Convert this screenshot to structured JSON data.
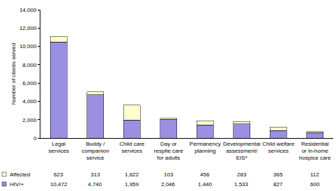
{
  "chart_data": {
    "type": "bar",
    "stacked": true,
    "y_label": "Number of clients served",
    "categories": [
      "Legal services",
      "Buddy / companion service",
      "Child care services",
      "Day or respite care for adults",
      "Permanency planning",
      "Developmental assessment/ EIS*",
      "Child welfare services",
      "Residential or in-home hospice care"
    ],
    "series": [
      {
        "name": "HIV/+",
        "color": "#9a8fe0",
        "values": [
          10472,
          4740,
          1959,
          2046,
          1440,
          1533,
          827,
          600
        ],
        "value_labels": [
          "10,472",
          "4,740",
          "1,959",
          "2,046",
          "1,440",
          "1,533",
          "827",
          "600"
        ]
      },
      {
        "name": "Affected",
        "color": "#ffffcc",
        "values": [
          623,
          313,
          1622,
          103,
          456,
          283,
          365,
          112
        ],
        "value_labels": [
          "623",
          "313",
          "1,622",
          "103",
          "456",
          "283",
          "365",
          "112"
        ]
      }
    ],
    "ylim": [
      0,
      14000
    ],
    "yticks": [
      0,
      {
        "value": 2000,
        "label": "2,000"
      },
      {
        "value": 4000,
        "label": "4,000"
      },
      {
        "value": 6000,
        "label": "6,000"
      },
      {
        "value": 8000,
        "label": "8,000"
      },
      {
        "value": 10000,
        "label": "10,000"
      },
      {
        "value": 12000,
        "label": "12,000"
      },
      {
        "value": 14000,
        "label": "14,000"
      }
    ],
    "grid": false
  }
}
